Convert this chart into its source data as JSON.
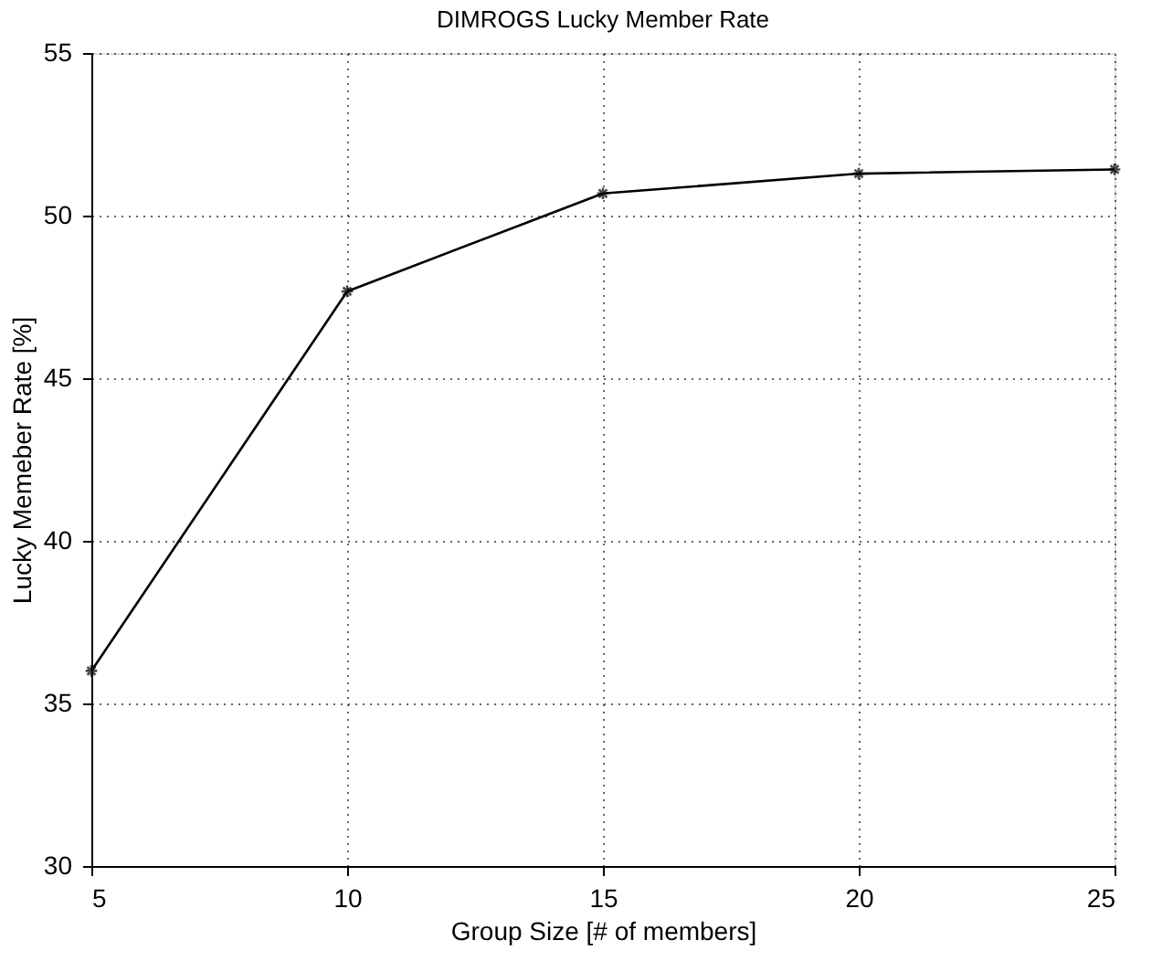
{
  "chart_data": {
    "type": "line",
    "title": "DIMROGS Lucky Member Rate",
    "xlabel": "Group Size [# of members]",
    "ylabel": "Lucky Memeber Rate [%]",
    "x": [
      5,
      10,
      15,
      20,
      25
    ],
    "series": [
      {
        "color": "#000000",
        "values": [
          36.0,
          47.67,
          50.68,
          51.29,
          51.42
        ]
      }
    ],
    "xlim": [
      5,
      25
    ],
    "xticks": [
      5,
      10,
      15,
      20,
      25
    ],
    "ylim": [
      30,
      55
    ],
    "yticks": [
      30,
      35,
      40,
      45,
      50,
      55
    ],
    "grid": true,
    "marker": "cross",
    "line_style": "solid",
    "legend": false
  }
}
